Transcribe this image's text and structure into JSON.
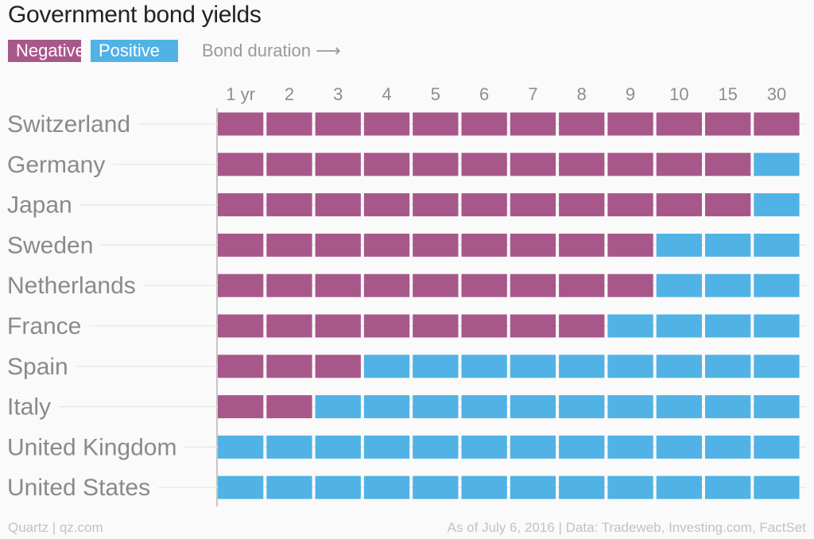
{
  "title": "Government bond yields",
  "legend": {
    "negative_label": "Negative",
    "positive_label": "Positive",
    "duration_label": "Bond duration ⟶"
  },
  "colors": {
    "negative": "#a8578a",
    "positive": "#51b2e5"
  },
  "footer": {
    "source_left": "Quartz | qz.com",
    "source_right": "As of July 6, 2016 | Data: Tradeweb, Investing.com, FactSet"
  },
  "chart_data": {
    "type": "heatmap",
    "title": "Government bond yields",
    "x_label": "Bond duration",
    "columns": [
      "1 yr",
      "2",
      "3",
      "4",
      "5",
      "6",
      "7",
      "8",
      "9",
      "10",
      "15",
      "30"
    ],
    "rows": [
      {
        "country": "Switzerland",
        "negative_count": 12
      },
      {
        "country": "Germany",
        "negative_count": 11
      },
      {
        "country": "Japan",
        "negative_count": 11
      },
      {
        "country": "Sweden",
        "negative_count": 9
      },
      {
        "country": "Netherlands",
        "negative_count": 9
      },
      {
        "country": "France",
        "negative_count": 8
      },
      {
        "country": "Spain",
        "negative_count": 3
      },
      {
        "country": "Italy",
        "negative_count": 2
      },
      {
        "country": "United Kingdom",
        "negative_count": 0
      },
      {
        "country": "United States",
        "negative_count": 0
      }
    ],
    "legend": [
      "Negative",
      "Positive"
    ]
  }
}
